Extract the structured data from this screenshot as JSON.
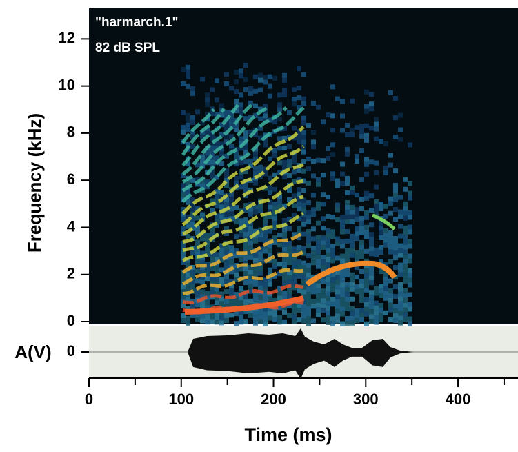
{
  "chart_data": [
    {
      "type": "spectrogram",
      "annotations": [
        "\"harmarch.1\"",
        "82 dB SPL"
      ],
      "ylabel": "Frequency (kHz)",
      "ylim": [
        0,
        13.3
      ],
      "yticks": [
        0,
        2,
        4,
        6,
        8,
        10,
        12
      ]
    },
    {
      "type": "waveform",
      "ylabel": "A(V)",
      "ylim": [
        -1,
        1
      ],
      "yticks": [
        0
      ],
      "xlabel": "Time (ms)",
      "xlim": [
        0,
        465
      ],
      "xticks": [
        0,
        100,
        200,
        300,
        400
      ],
      "xminorticks": [
        50,
        150,
        250,
        350,
        450
      ]
    }
  ]
}
